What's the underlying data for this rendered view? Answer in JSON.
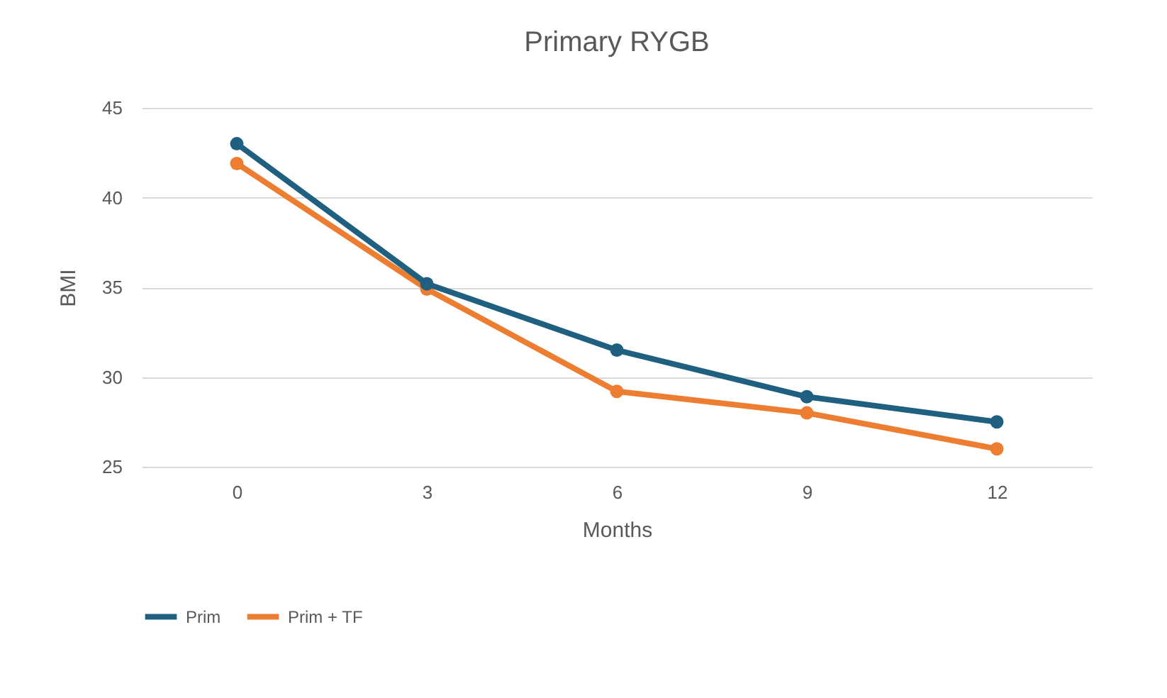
{
  "chart_data": {
    "type": "line",
    "title": "Primary RYGB",
    "xlabel": "Months",
    "ylabel": "BMI",
    "categories": [
      "0",
      "3",
      "6",
      "9",
      "12"
    ],
    "series": [
      {
        "name": "Prim",
        "color": "#1f5f7f",
        "values": [
          43.0,
          35.2,
          31.5,
          28.9,
          27.5
        ]
      },
      {
        "name": "Prim + TF",
        "color": "#ed7d31",
        "values": [
          41.9,
          34.9,
          29.2,
          28.0,
          26.0
        ]
      }
    ],
    "ylim": [
      25,
      45
    ],
    "yticks": [
      25,
      30,
      35,
      40,
      45
    ],
    "grid": "y",
    "legend": "bottom",
    "marker": "circle",
    "line_style": "solid"
  }
}
